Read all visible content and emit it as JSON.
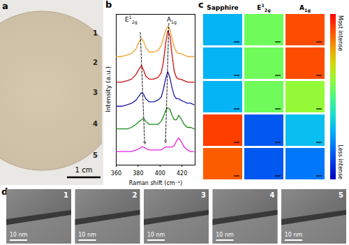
{
  "panel_labels": [
    "a",
    "b",
    "c",
    "d"
  ],
  "photo": {
    "labels": [
      "1",
      "2",
      "3",
      "4",
      "5"
    ],
    "scale_bar": "1 cm"
  },
  "chart_data": {
    "type": "line",
    "xlabel": "Raman shift (cm⁻¹)",
    "ylabel": "Intensity (a.u.)",
    "x": [
      360,
      365,
      370,
      374,
      378,
      381,
      383,
      385,
      387,
      390,
      394,
      398,
      401,
      403,
      405,
      407,
      409,
      411,
      413,
      415,
      417,
      419,
      422,
      425,
      428,
      431
    ],
    "series": [
      {
        "color": "#f0a030",
        "values": [
          72,
          72,
          73,
          74,
          77,
          82,
          84,
          82,
          78,
          75,
          75,
          76,
          79,
          84,
          89,
          92,
          90,
          84,
          78,
          75,
          74,
          74,
          73,
          72,
          72,
          72
        ]
      },
      {
        "color": "#cc1010",
        "values": [
          55,
          55,
          56,
          57,
          60,
          64,
          66,
          63,
          59,
          57,
          57,
          58,
          61,
          68,
          80,
          89,
          86,
          73,
          62,
          58,
          57,
          57,
          56,
          55,
          55,
          55
        ]
      },
      {
        "color": "#1a1aaa",
        "values": [
          39,
          39,
          40,
          41,
          43,
          46,
          48,
          47,
          44,
          42,
          42,
          43,
          45,
          50,
          57,
          62,
          58,
          51,
          46,
          44,
          44,
          43,
          42,
          41,
          41,
          40
        ]
      },
      {
        "color": "#1a8a1a",
        "values": [
          24,
          24,
          24,
          25,
          27,
          29,
          30,
          31,
          29,
          27,
          27,
          27,
          29,
          32,
          36,
          38,
          37,
          33,
          30,
          30,
          33,
          31,
          27,
          25,
          25,
          24
        ]
      },
      {
        "color": "#e020e0",
        "values": [
          9,
          9,
          9,
          9,
          10,
          11,
          12,
          12,
          11,
          10,
          10,
          10,
          10,
          11,
          12,
          12,
          12,
          12,
          13,
          16,
          18,
          16,
          12,
          10,
          9,
          9
        ]
      }
    ],
    "xlim": [
      360,
      432
    ],
    "xticks": [
      360,
      380,
      400,
      420
    ],
    "ylim": [
      0,
      100
    ],
    "yticks": [],
    "tick_labels": "x",
    "peak_labels": [
      {
        "base": "E",
        "sup": "1",
        "sub": "2g",
        "x": 374,
        "y": 95
      },
      {
        "base": "A",
        "sub": "1g",
        "x": 411,
        "y": 95
      }
    ],
    "peak_guides": [
      {
        "x": [
          382,
          386
        ],
        "y": [
          88,
          14
        ]
      },
      {
        "x": [
          408,
          405
        ],
        "y": [
          94,
          15
        ]
      }
    ]
  },
  "maps": {
    "columns": [
      {
        "base": "Sapphire"
      },
      {
        "base": "E",
        "sup": "1",
        "sub": "2g"
      },
      {
        "base": "A",
        "sub": "1g"
      }
    ],
    "cells": [
      [
        0.3,
        0.55,
        0.9
      ],
      [
        0.3,
        0.55,
        0.9
      ],
      [
        0.3,
        0.55,
        0.6
      ],
      [
        0.92,
        0.15,
        0.32
      ],
      [
        0.88,
        0.15,
        0.2
      ]
    ],
    "colorbar": {
      "range": [
        0,
        1
      ],
      "top_label": "Most intense",
      "bottom_label": "Less intense"
    }
  },
  "tem": {
    "labels": [
      "1",
      "2",
      "3",
      "4",
      "5"
    ],
    "scale_bar": "10 nm"
  }
}
